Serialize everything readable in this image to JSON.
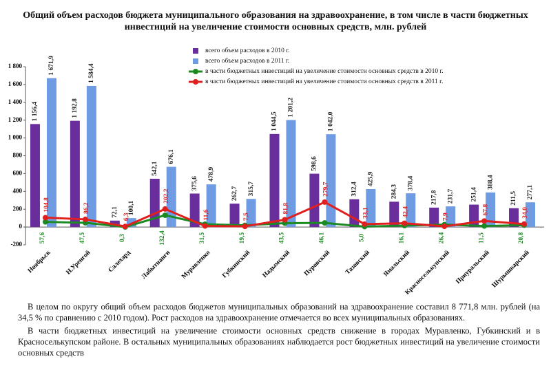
{
  "chart_data": {
    "type": "bar",
    "title": "Общий объем расходов бюджета муниципального образования на здравоохранение, в том числе в части бюджетных инвестиций  на увеличение стоимости основных средств, млн. рублей",
    "categories": [
      "Ноябрьск",
      "Н.Уренгой",
      "Салехард",
      "Лабытнанги",
      "Муравленко",
      "Губкинский",
      "Надымский",
      "Пуровский",
      "Тазовский",
      "Ямальский",
      "Красноселькупский",
      "Приуральский",
      "Шурышкарский"
    ],
    "series": [
      {
        "name": "всего объем расходов в 2010 г.",
        "type": "bar",
        "color": "#6a2d9c",
        "values": [
          1156.4,
          1192.8,
          72.1,
          542.1,
          375.6,
          262.7,
          1044.5,
          598.6,
          312.4,
          284.3,
          217.8,
          251.4,
          211.5
        ],
        "value_labels": [
          "1 156,4",
          "1 192,8",
          "72,1",
          "542,1",
          "375,6",
          "262,7",
          "1 044,5",
          "598,6",
          "312,4",
          "284,3",
          "217,8",
          "251,4",
          "211,5"
        ]
      },
      {
        "name": "всего объем расходов в 2011 г.",
        "type": "bar",
        "color": "#6f9be3",
        "values": [
          1671.9,
          1584.4,
          100.1,
          676.1,
          478.9,
          315.7,
          1201.2,
          1042.0,
          425.9,
          378.4,
          231.7,
          388.4,
          277.1
        ],
        "value_labels": [
          "1 671,9",
          "1 584,4",
          "100,1",
          "676,1",
          "478,9",
          "315,7",
          "1 201,2",
          "1 042,0",
          "425,9",
          "378,4",
          "231,7",
          "388,4",
          "277,1"
        ]
      },
      {
        "name": "в части бюджетных инвестиций на увеличение стоимости основных средств в 2010 г.",
        "type": "line",
        "color": "#1b8a22",
        "values": [
          57.6,
          47.5,
          0.3,
          132.4,
          31.5,
          19.5,
          43.5,
          46.1,
          5.0,
          16.1,
          26.4,
          11.5,
          20.8
        ],
        "value_labels": [
          "57,6",
          "47,5",
          "0,3",
          "132,4",
          "31,5",
          "19,5",
          "43,5",
          "46,1",
          "5,0",
          "16,1",
          "26,4",
          "11,5",
          "20,8"
        ]
      },
      {
        "name": "в части бюджетных инвестиций на увеличение стоимости основных средств в 2011 г.",
        "type": "line",
        "color": "#e0201e",
        "values": [
          104.8,
          86.2,
          6.3,
          202.2,
          11.6,
          7.5,
          81.8,
          279.7,
          33.1,
          42.4,
          7.9,
          67.8,
          34.0
        ],
        "value_labels": [
          "104,8",
          "86,2",
          "6,3",
          "202,2",
          "11,6",
          "7,5",
          "81,8",
          "279,7",
          "33,1",
          "42,4",
          "7,9",
          "67,8",
          "34,0"
        ]
      }
    ],
    "ylim": [
      -200,
      1800
    ],
    "yticks": [
      -200,
      0,
      200,
      400,
      600,
      800,
      {
        "value": 1000,
        "label": "1 000"
      },
      {
        "value": 1200,
        "label": "1 200"
      },
      {
        "value": 1400,
        "label": "1 400"
      },
      {
        "value": 1600,
        "label": "1 600"
      },
      {
        "value": 1800,
        "label": "1 800"
      }
    ],
    "grid": false
  },
  "text": {
    "paragraphs": [
      "В целом по округу общий объем расходов  бюджетов муниципальных образований на здравоохранение составил 8 771,8 млн. рублей (на 34,5 % по сравнению с 2010 годом). Рост расходов на здравоохранение отмечается во всех муниципальных образованиях.",
      "В части бюджетных инвестиций на увеличение стоимости основных средств снижение в городах Муравленко, Губкинский и в Красноселькупском районе. В остальных муниципальных образованиях наблюдается рост бюджетных инвестиций на увеличение стоимости основных средств"
    ]
  }
}
